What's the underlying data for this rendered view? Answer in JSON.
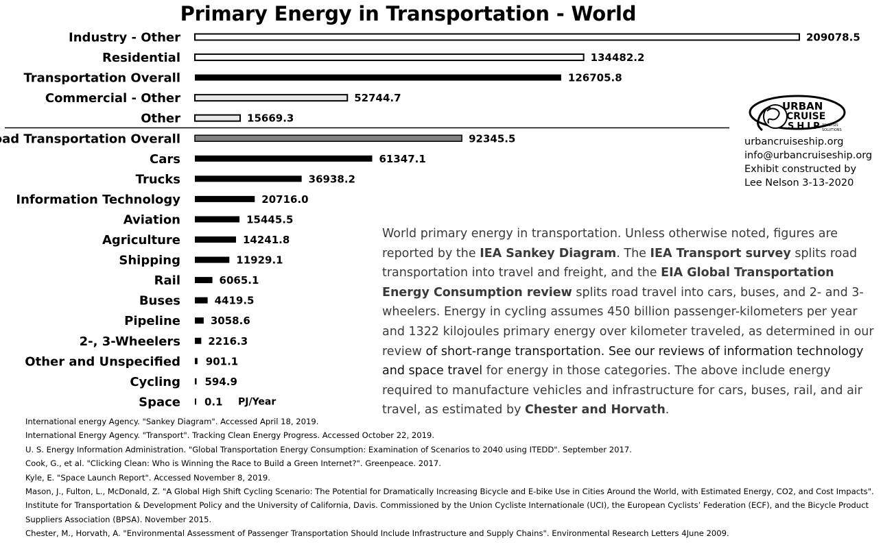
{
  "chart_data": {
    "type": "bar",
    "orientation": "horizontal",
    "title": "Primary Energy in Transportation - World",
    "unit_label": "PJ/Year",
    "categories": [
      "Industry - Other",
      "Residential",
      "Transportation Overall",
      "Commercial - Other",
      "Other",
      "Road Transportation Overall",
      "Cars",
      "Trucks",
      "Information Technology",
      "Aviation",
      "Agriculture",
      "Shipping",
      "Rail",
      "Buses",
      "Pipeline",
      "2-, 3-Wheelers",
      "Other and Unspecified",
      "Cycling",
      "Space"
    ],
    "values": [
      209078.5,
      134482.2,
      126705.8,
      52744.7,
      15669.3,
      92345.5,
      61347.1,
      36938.2,
      20716.0,
      15445.5,
      14241.8,
      11929.1,
      6065.1,
      4419.5,
      3058.6,
      2216.3,
      901.1,
      594.9,
      0.1
    ],
    "value_labels": [
      "209078.5",
      "134482.2",
      "126705.8",
      "52744.7",
      "15669.3",
      "92345.5",
      "61347.1",
      "36938.2",
      "20716.0",
      "15445.5",
      "14241.8",
      "11929.1",
      "6065.1",
      "4419.5",
      "3058.6",
      "2216.3",
      "901.1",
      "594.9",
      "0.1"
    ],
    "bar_styles": [
      "outline",
      "outline",
      "black",
      "outline-light",
      "outline-light",
      "gray",
      "black",
      "black",
      "black",
      "black",
      "black",
      "black",
      "black",
      "black",
      "black",
      "black",
      "black",
      "black",
      "black"
    ],
    "colors": {
      "black": "#000000",
      "gray": "#7f7f7f",
      "outline_fill": "#ffffff",
      "light_fill": "#e8e8e8"
    },
    "xlim": [
      0,
      209078.5
    ],
    "divider_after": "Other",
    "grid": false,
    "legend": "none"
  },
  "logo": {
    "line1": "URBAN",
    "line2": "CRUISE",
    "line3": "SHIP",
    "tag1": "ANALYSIS",
    "tag2": "SOLUTIONS"
  },
  "contact": {
    "website": "urbancruiseship.org",
    "email": "info@urbancruiseship.org",
    "credit1": "Exhibit constructed by",
    "credit2": "Lee Nelson 3-13-2020"
  },
  "description": {
    "p1": "World primary energy in transportation. Unless otherwise noted, figures are reported by the ",
    "b1": "IEA Sankey Diagram",
    "p2": ". The ",
    "b2": "IEA Transport survey",
    "p3": " splits road transportation into travel and freight, and the ",
    "b3": "EIA Global Transportation Energy Consumption review",
    "p4": " splits road travel into cars, buses, and 2- and 3- wheelers. Energy in cycling assumes 450 billion passenger-kilometers per year and 1322 kilojoules primary energy over kilometer traveled, as determined in our review ",
    "d1": "of short-range transportation. See our reviews of information technology and space travel",
    "p5": " for energy in those categories. The above include energy required to manufacture vehicles and infrastructure for cars, buses, rail, and air travel, as estimated by ",
    "b4": "Chester and Horvath",
    "p6": "."
  },
  "references": [
    "International energy Agency. \"Sankey Diagram\". Accessed April 18, 2019.",
    "International Energy Agency. \"Transport\". Tracking Clean Energy Progress. Accessed October 22, 2019.",
    "U. S. Energy Information Administration. \"Global Transportation Energy Consumption: Examination of Scenarios to 2040 using ITEDD\". September 2017.",
    "Cook, G., et al. \"Clicking Clean: Who is Winning the Race to Build a Green Internet?\". Greenpeace. 2017.",
    "Kyle, E. \"Space Launch Report\". Accessed November 8, 2019.",
    "Mason, J., Fulton, L., McDonald, Z. \"A Global High Shift Cycling Scenario: The Potential for Dramatically Increasing Bicycle and E-bike Use in Cities Around the World, with Estimated Energy, CO2, and Cost Impacts\". Institute for Transportation & Development Policy and the University of California, Davis. Commissioned by the Union Cycliste Internationale (UCI), the European Cyclists’ Federation (ECF), and the Bicycle Product Suppliers Association (BPSA). November 2015.",
    "Chester, M., Horvath, A. \"Environmental Assessment of Passenger Transportation Should Include Infrastructure and Supply Chains\". Environmental Research Letters 4June 2009."
  ]
}
